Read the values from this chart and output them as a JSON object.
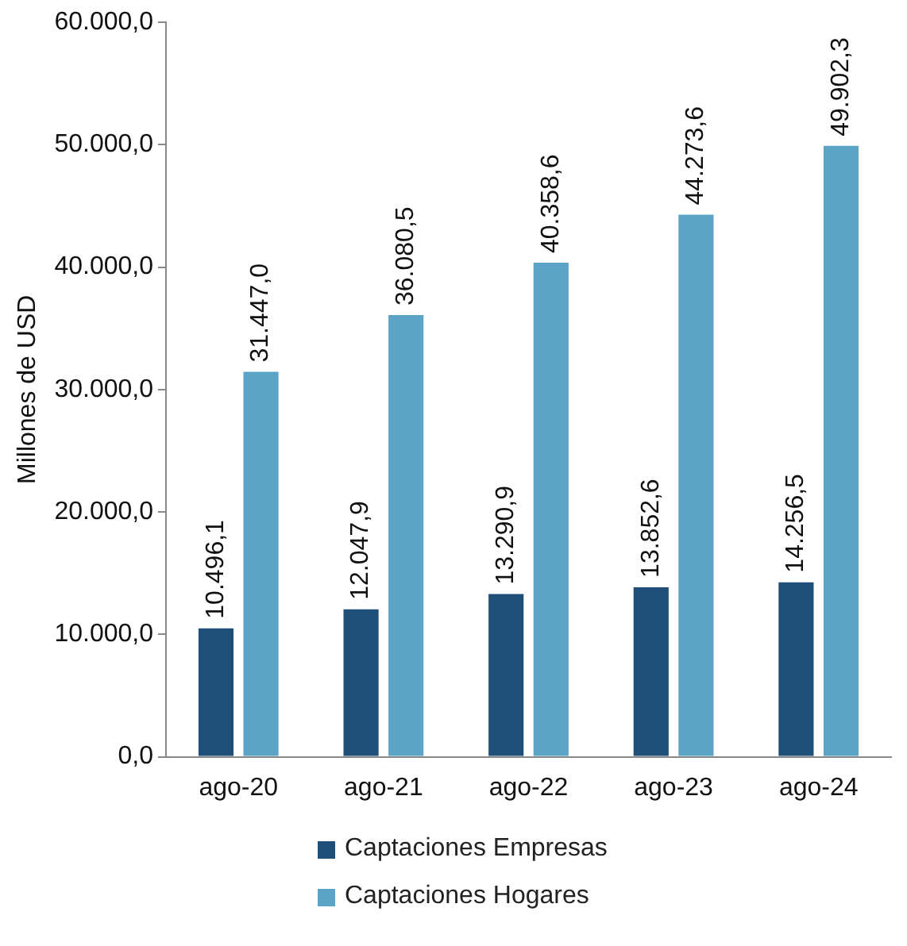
{
  "chart_data": {
    "type": "bar",
    "ylabel": "Millones de USD",
    "categories": [
      "ago-20",
      "ago-21",
      "ago-22",
      "ago-23",
      "ago-24"
    ],
    "series": [
      {
        "name": "Captaciones Empresas",
        "color": "#1f4e79",
        "values": [
          10496.1,
          12047.9,
          13290.9,
          13852.6,
          14256.5
        ],
        "value_labels": [
          "10.496,1",
          "12.047,9",
          "13.290,9",
          "13.852,6",
          "14.256,5"
        ]
      },
      {
        "name": "Captaciones Hogares",
        "color": "#5ba3c7",
        "values": [
          31447.0,
          36080.5,
          40358.6,
          44273.6,
          49902.3
        ],
        "value_labels": [
          "31.447,0",
          "36.080,5",
          "40.358,6",
          "44.273,6",
          "49.902,3"
        ]
      }
    ],
    "ylim": [
      0,
      60000
    ],
    "yticks": [
      {
        "value": 0,
        "label": "0,0"
      },
      {
        "value": 10000,
        "label": "10.000,0"
      },
      {
        "value": 20000,
        "label": "20.000,0"
      },
      {
        "value": 30000,
        "label": "30.000,0"
      },
      {
        "value": 40000,
        "label": "40.000,0"
      },
      {
        "value": 50000,
        "label": "50.000,0"
      },
      {
        "value": 60000,
        "label": "60.000,0"
      }
    ],
    "grid": false,
    "legend": "bottom"
  }
}
